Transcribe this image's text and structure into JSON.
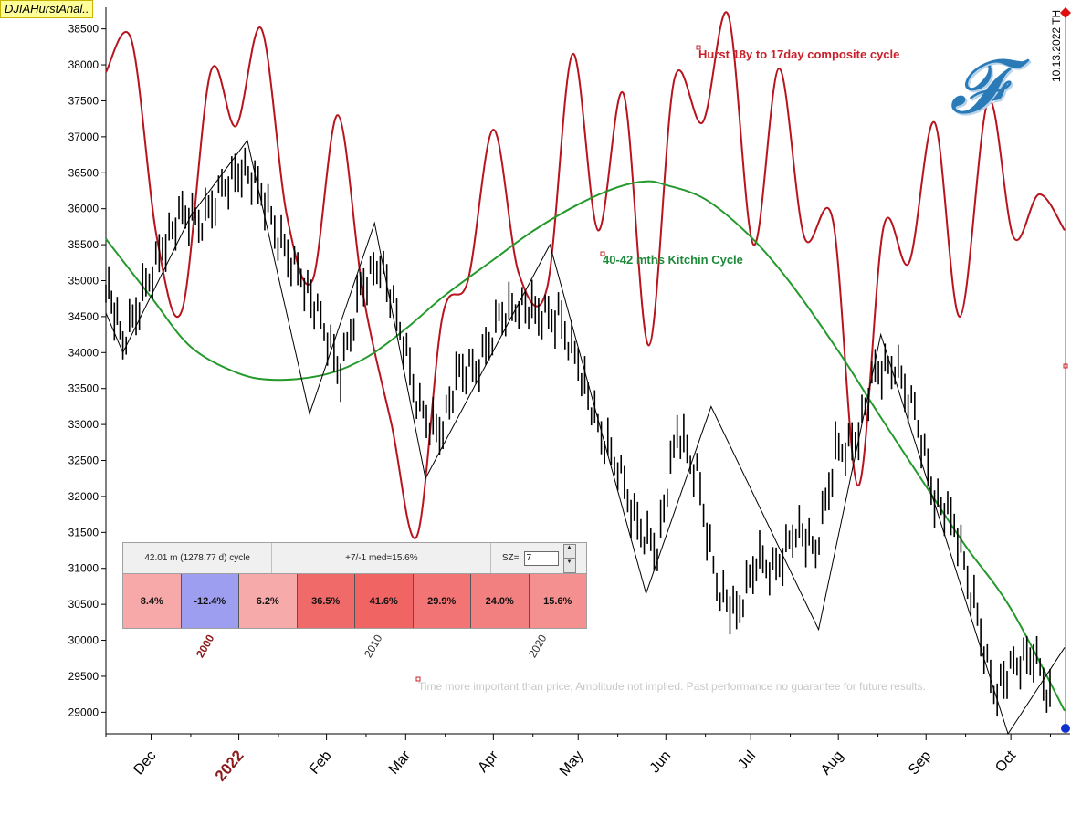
{
  "app": {
    "title": "DJIAHurstAnal.."
  },
  "date_stamp": "10.13.2022 TH",
  "disclaimer": "Time more important than price; Amplitude not implied. Past performance no guarantee for future results.",
  "colors": {
    "composite": "#b8141e",
    "kitchin": "#24992c",
    "price": "#000000",
    "year_label": "#8b1a1a",
    "logo": "#2a7ab8"
  },
  "icons": [
    "logo-f-icon",
    "spin-up-icon",
    "spin-down-icon",
    "end-marker-icon"
  ],
  "logo": {
    "letter": "F"
  },
  "cycle_panel": {
    "cycle_label": "42.01 m (1278.77 d) cycle",
    "stats_label": "+7/-1 med=15.6%",
    "sz_label": "SZ=",
    "sz_value": "7",
    "cells": [
      {
        "text": "8.4%",
        "color": "#f7a8a8"
      },
      {
        "text": "-12.4%",
        "color": "#9e9ef0"
      },
      {
        "text": "6.2%",
        "color": "#f7aaaa"
      },
      {
        "text": "36.5%",
        "color": "#f06a6a"
      },
      {
        "text": "41.6%",
        "color": "#f06464"
      },
      {
        "text": "29.9%",
        "color": "#f27474"
      },
      {
        "text": "24.0%",
        "color": "#f38080"
      },
      {
        "text": "15.6%",
        "color": "#f59090"
      }
    ],
    "decade_labels": [
      {
        "text": "2000",
        "highlight": true
      },
      {
        "text": "2010",
        "highlight": false
      },
      {
        "text": "2020",
        "highlight": false
      }
    ]
  },
  "chart_data": {
    "type": "line",
    "title": "",
    "xlabel": "",
    "ylabel": "",
    "ylim": [
      28700,
      38800
    ],
    "y_ticks": [
      29000,
      29500,
      30000,
      30500,
      31000,
      31500,
      32000,
      32500,
      33000,
      33500,
      34000,
      34500,
      35000,
      35500,
      36000,
      36500,
      37000,
      37500,
      38000,
      38500
    ],
    "x_tick_labels": [
      {
        "text": "Dec",
        "year": false
      },
      {
        "text": "2022",
        "year": true
      },
      {
        "text": "Feb",
        "year": false
      },
      {
        "text": "Mar",
        "year": false
      },
      {
        "text": "Apr",
        "year": false
      },
      {
        "text": "May",
        "year": false
      },
      {
        "text": "Jun",
        "year": false
      },
      {
        "text": "Jul",
        "year": false
      },
      {
        "text": "Aug",
        "year": false
      },
      {
        "text": "Sep",
        "year": false
      },
      {
        "text": "Oct",
        "year": false
      }
    ],
    "annotations": [
      "Hurst 18y to 17day composite cycle",
      "40-42 mths Kitchin Cycle"
    ],
    "series": [
      {
        "name": "Hurst 18y to 17day composite cycle",
        "color": "#b8141e",
        "x": [
          "2021-11-15",
          "2021-11-24",
          "2021-12-03",
          "2021-12-12",
          "2021-12-22",
          "2021-12-31",
          "2022-01-09",
          "2022-01-18",
          "2022-01-27",
          "2022-02-05",
          "2022-02-14",
          "2022-02-24",
          "2022-03-05",
          "2022-03-14",
          "2022-03-23",
          "2022-04-01",
          "2022-04-10",
          "2022-04-20",
          "2022-04-29",
          "2022-05-08",
          "2022-05-17",
          "2022-05-26",
          "2022-06-04",
          "2022-06-14",
          "2022-06-23",
          "2022-07-02",
          "2022-07-11",
          "2022-07-20",
          "2022-07-30",
          "2022-08-08",
          "2022-08-17",
          "2022-08-26",
          "2022-09-04",
          "2022-09-13",
          "2022-09-23",
          "2022-10-02",
          "2022-10-11",
          "2022-10-20"
        ],
        "y": [
          37900,
          38350,
          35600,
          34600,
          37900,
          37150,
          38500,
          35900,
          35000,
          37300,
          34800,
          33000,
          31450,
          34500,
          35000,
          37100,
          35100,
          34900,
          38150,
          35700,
          37600,
          34100,
          37800,
          37200,
          38700,
          35500,
          37950,
          35600,
          35850,
          32150,
          35750,
          35250,
          37200,
          34500,
          37500,
          35600,
          36200,
          35700
        ]
      },
      {
        "name": "40-42 mths Kitchin Cycle",
        "color": "#24992c",
        "x": [
          "2021-11-15",
          "2021-12-01",
          "2021-12-15",
          "2022-01-01",
          "2022-01-15",
          "2022-02-01",
          "2022-02-15",
          "2022-03-01",
          "2022-03-15",
          "2022-04-01",
          "2022-04-15",
          "2022-05-01",
          "2022-05-15",
          "2022-05-25",
          "2022-06-01",
          "2022-06-15",
          "2022-07-01",
          "2022-07-15",
          "2022-08-01",
          "2022-08-15",
          "2022-09-01",
          "2022-09-15",
          "2022-10-01",
          "2022-10-20"
        ],
        "y": [
          35580,
          34770,
          34080,
          33710,
          33620,
          33700,
          33930,
          34330,
          34800,
          35290,
          35690,
          36060,
          36300,
          36380,
          36330,
          36130,
          35610,
          34970,
          34020,
          33160,
          32140,
          31310,
          30440,
          29020
        ]
      },
      {
        "name": "",
        "color": "#000000",
        "x": [
          "2021-11-15",
          "2021-11-21",
          "2021-11-28",
          "2021-12-05",
          "2021-12-12",
          "2021-12-19",
          "2021-12-26",
          "2022-01-02",
          "2022-01-09",
          "2022-01-16",
          "2022-01-23",
          "2022-01-30",
          "2022-02-06",
          "2022-02-13",
          "2022-02-20",
          "2022-02-27",
          "2022-03-06",
          "2022-03-13",
          "2022-03-20",
          "2022-03-27",
          "2022-04-03",
          "2022-04-10",
          "2022-04-17",
          "2022-04-24",
          "2022-05-01",
          "2022-05-08",
          "2022-05-15",
          "2022-05-22",
          "2022-05-29",
          "2022-06-05",
          "2022-06-12",
          "2022-06-19",
          "2022-06-26",
          "2022-07-03",
          "2022-07-10",
          "2022-07-17",
          "2022-07-24",
          "2022-07-31",
          "2022-08-07",
          "2022-08-14",
          "2022-08-21",
          "2022-08-28",
          "2022-09-04",
          "2022-09-11",
          "2022-09-18",
          "2022-09-25",
          "2022-10-02",
          "2022-10-09",
          "2022-10-16"
        ],
        "y": [
          35000,
          34100,
          34800,
          35500,
          35900,
          35800,
          36300,
          36600,
          36200,
          35500,
          35100,
          34400,
          33700,
          34900,
          35300,
          34300,
          33200,
          32900,
          33700,
          33800,
          34500,
          34700,
          34500,
          34500,
          33900,
          32900,
          32400,
          31600,
          31300,
          32900,
          32300,
          30800,
          30300,
          31100,
          31000,
          31600,
          31200,
          32600,
          32800,
          33700,
          33800,
          33200,
          32000,
          31600,
          30500,
          29300,
          29600,
          29800,
          29100
        ]
      },
      {
        "name": "",
        "color": "#000000",
        "x": [
          "2021-11-15",
          "2021-11-21",
          "2021-12-15",
          "2022-01-04",
          "2022-01-26",
          "2022-02-18",
          "2022-03-08",
          "2022-04-21",
          "2022-05-25",
          "2022-06-17",
          "2022-07-25",
          "2022-08-16",
          "2022-09-30",
          "2022-10-20"
        ],
        "y": [
          34550,
          34000,
          35900,
          36950,
          33150,
          35800,
          32250,
          35500,
          30650,
          33250,
          30150,
          34250,
          28700,
          29900
        ]
      }
    ]
  }
}
